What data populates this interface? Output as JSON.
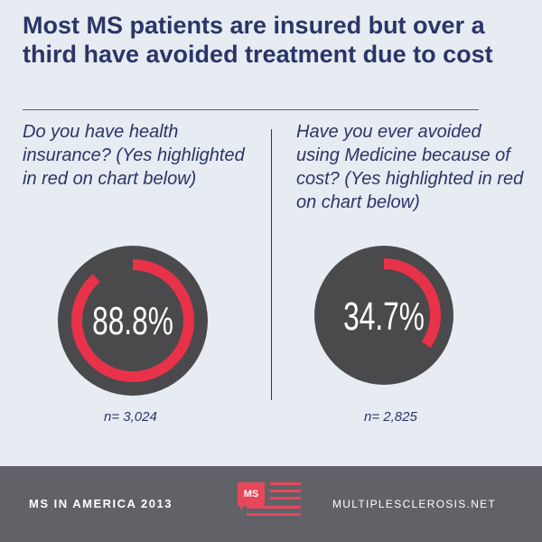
{
  "title": "Most MS patients are insured but over a third have avoided treatment due to cost",
  "colors": {
    "accent": "#e8324a",
    "ring_track": "#4a4a4d",
    "title_navy": "#2b3568",
    "footer_bg": "#606268"
  },
  "chart_data": [
    {
      "type": "pie",
      "question": "Do you have health insurance? (Yes highlighted in red on chart below)",
      "value_label": "88.8%",
      "highlighted_value": 88.8,
      "n": "n= 3,024"
    },
    {
      "type": "pie",
      "question": "Have you ever avoided using Medicine because of cost? (Yes highlighted in red on chart below)",
      "value_label": "34.7%",
      "highlighted_value": 34.7,
      "n": "n= 2,825"
    }
  ],
  "footer": {
    "left_text": "MS IN AMERICA 2013",
    "logo_text": "MS",
    "right_text": "MULTIPLESCLEROSIS.NET"
  }
}
